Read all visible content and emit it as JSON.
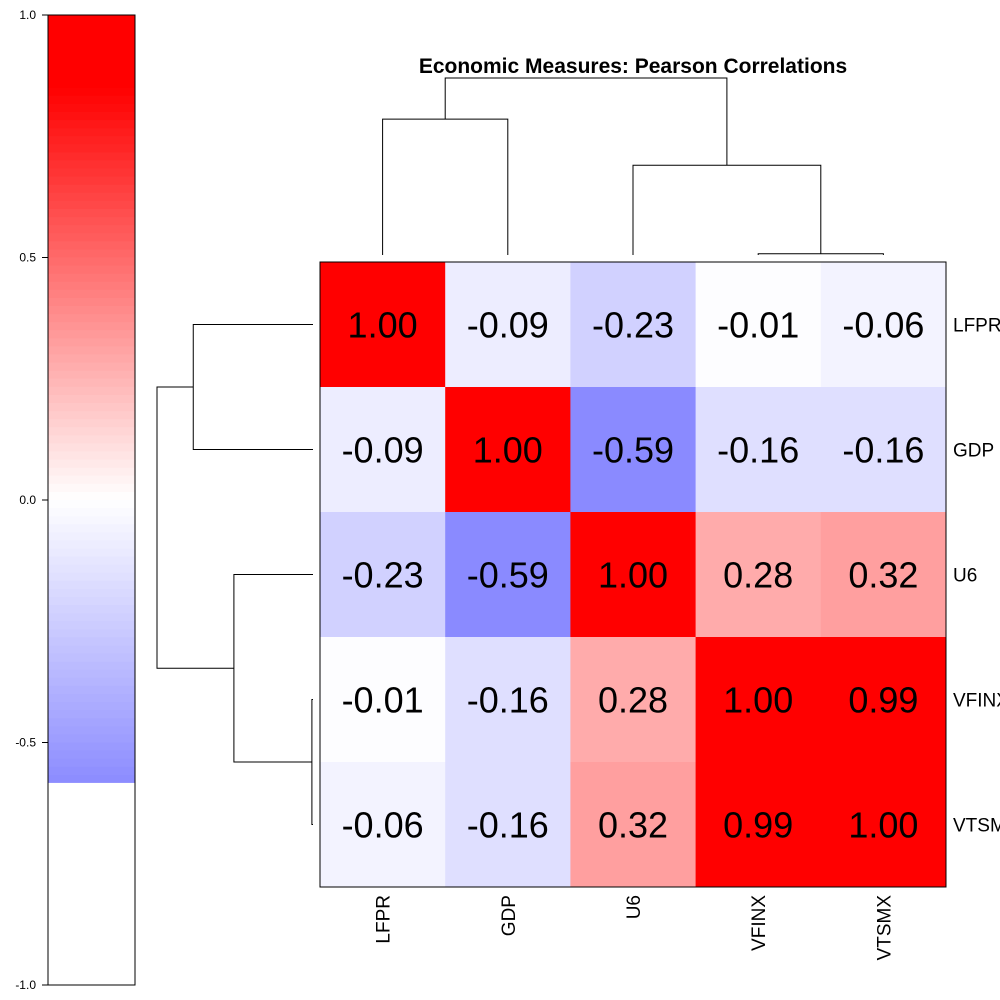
{
  "chart_data": {
    "type": "heatmap",
    "title": "Economic Measures: Pearson Correlations",
    "row_labels": [
      "LFPR",
      "GDP",
      "U6",
      "VFINX",
      "VTSMX"
    ],
    "col_labels": [
      "LFPR",
      "GDP",
      "U6",
      "VFINX",
      "VTSMX"
    ],
    "values": [
      [
        1.0,
        -0.09,
        -0.23,
        -0.01,
        -0.06
      ],
      [
        -0.09,
        1.0,
        -0.59,
        -0.16,
        -0.16
      ],
      [
        -0.23,
        -0.59,
        1.0,
        0.28,
        0.32
      ],
      [
        -0.01,
        -0.16,
        0.28,
        1.0,
        0.99
      ],
      [
        -0.06,
        -0.16,
        0.32,
        0.99,
        1.0
      ]
    ],
    "cell_labels": [
      [
        "1.00",
        "-0.09",
        "-0.23",
        "-0.01",
        "-0.06"
      ],
      [
        "-0.09",
        "1.00",
        "-0.59",
        "-0.16",
        "-0.16"
      ],
      [
        "-0.23",
        "-0.59",
        "1.00",
        "0.28",
        "0.32"
      ],
      [
        "-0.01",
        "-0.16",
        "0.28",
        "1.00",
        "0.99"
      ],
      [
        "-0.06",
        "-0.16",
        "0.32",
        "0.99",
        "1.00"
      ]
    ],
    "color_scale": {
      "low_color": "#0000ff",
      "mid_color": "#ffffff",
      "high_color": "#ff0000",
      "range": [
        -1.0,
        1.0
      ],
      "data_min": -0.59,
      "data_max": 1.0,
      "saturate_above": 0.85
    },
    "colorbar": {
      "ticks": [
        1.0,
        0.5,
        0.0,
        -0.5,
        -1.0
      ],
      "tick_labels": [
        "1.0",
        "0.5",
        "0.0",
        "-0.5",
        "-1.0"
      ]
    },
    "dendrogram": {
      "leaf_order": [
        "LFPR",
        "GDP",
        "U6",
        "VFINX",
        "VTSMX"
      ],
      "merges": [
        {
          "left": "VFINX",
          "right": "VTSMX",
          "height": 0.01
        },
        {
          "left": "U6",
          "right": "VFINX+VTSMX",
          "height": 0.72
        },
        {
          "left": "LFPR",
          "right": "GDP",
          "height": 1.09
        },
        {
          "left": "LFPR+GDP",
          "right": "U6+VFINX+VTSMX",
          "height": 1.42
        }
      ]
    }
  }
}
